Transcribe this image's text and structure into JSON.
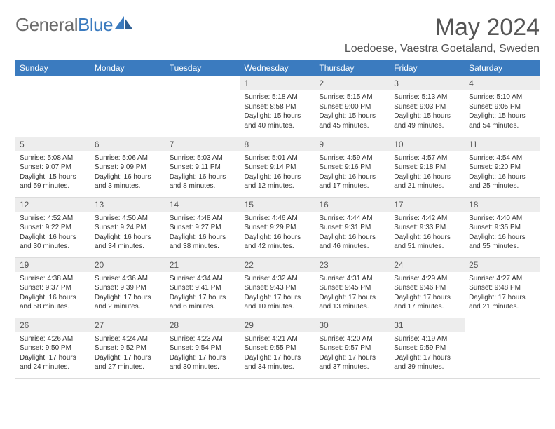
{
  "brand": {
    "part1": "General",
    "part2": "Blue"
  },
  "title": "May 2024",
  "location": "Loedoese, Vaestra Goetaland, Sweden",
  "colors": {
    "headerBar": "#3b7bbf",
    "dayNumBg": "#ededed",
    "text": "#333333",
    "muted": "#555555"
  },
  "weekdays": [
    "Sunday",
    "Monday",
    "Tuesday",
    "Wednesday",
    "Thursday",
    "Friday",
    "Saturday"
  ],
  "startOffset": 3,
  "days": [
    {
      "n": "1",
      "sunrise": "5:18 AM",
      "sunset": "8:58 PM",
      "daylight": "15 hours and 40 minutes."
    },
    {
      "n": "2",
      "sunrise": "5:15 AM",
      "sunset": "9:00 PM",
      "daylight": "15 hours and 45 minutes."
    },
    {
      "n": "3",
      "sunrise": "5:13 AM",
      "sunset": "9:03 PM",
      "daylight": "15 hours and 49 minutes."
    },
    {
      "n": "4",
      "sunrise": "5:10 AM",
      "sunset": "9:05 PM",
      "daylight": "15 hours and 54 minutes."
    },
    {
      "n": "5",
      "sunrise": "5:08 AM",
      "sunset": "9:07 PM",
      "daylight": "15 hours and 59 minutes."
    },
    {
      "n": "6",
      "sunrise": "5:06 AM",
      "sunset": "9:09 PM",
      "daylight": "16 hours and 3 minutes."
    },
    {
      "n": "7",
      "sunrise": "5:03 AM",
      "sunset": "9:11 PM",
      "daylight": "16 hours and 8 minutes."
    },
    {
      "n": "8",
      "sunrise": "5:01 AM",
      "sunset": "9:14 PM",
      "daylight": "16 hours and 12 minutes."
    },
    {
      "n": "9",
      "sunrise": "4:59 AM",
      "sunset": "9:16 PM",
      "daylight": "16 hours and 17 minutes."
    },
    {
      "n": "10",
      "sunrise": "4:57 AM",
      "sunset": "9:18 PM",
      "daylight": "16 hours and 21 minutes."
    },
    {
      "n": "11",
      "sunrise": "4:54 AM",
      "sunset": "9:20 PM",
      "daylight": "16 hours and 25 minutes."
    },
    {
      "n": "12",
      "sunrise": "4:52 AM",
      "sunset": "9:22 PM",
      "daylight": "16 hours and 30 minutes."
    },
    {
      "n": "13",
      "sunrise": "4:50 AM",
      "sunset": "9:24 PM",
      "daylight": "16 hours and 34 minutes."
    },
    {
      "n": "14",
      "sunrise": "4:48 AM",
      "sunset": "9:27 PM",
      "daylight": "16 hours and 38 minutes."
    },
    {
      "n": "15",
      "sunrise": "4:46 AM",
      "sunset": "9:29 PM",
      "daylight": "16 hours and 42 minutes."
    },
    {
      "n": "16",
      "sunrise": "4:44 AM",
      "sunset": "9:31 PM",
      "daylight": "16 hours and 46 minutes."
    },
    {
      "n": "17",
      "sunrise": "4:42 AM",
      "sunset": "9:33 PM",
      "daylight": "16 hours and 51 minutes."
    },
    {
      "n": "18",
      "sunrise": "4:40 AM",
      "sunset": "9:35 PM",
      "daylight": "16 hours and 55 minutes."
    },
    {
      "n": "19",
      "sunrise": "4:38 AM",
      "sunset": "9:37 PM",
      "daylight": "16 hours and 58 minutes."
    },
    {
      "n": "20",
      "sunrise": "4:36 AM",
      "sunset": "9:39 PM",
      "daylight": "17 hours and 2 minutes."
    },
    {
      "n": "21",
      "sunrise": "4:34 AM",
      "sunset": "9:41 PM",
      "daylight": "17 hours and 6 minutes."
    },
    {
      "n": "22",
      "sunrise": "4:32 AM",
      "sunset": "9:43 PM",
      "daylight": "17 hours and 10 minutes."
    },
    {
      "n": "23",
      "sunrise": "4:31 AM",
      "sunset": "9:45 PM",
      "daylight": "17 hours and 13 minutes."
    },
    {
      "n": "24",
      "sunrise": "4:29 AM",
      "sunset": "9:46 PM",
      "daylight": "17 hours and 17 minutes."
    },
    {
      "n": "25",
      "sunrise": "4:27 AM",
      "sunset": "9:48 PM",
      "daylight": "17 hours and 21 minutes."
    },
    {
      "n": "26",
      "sunrise": "4:26 AM",
      "sunset": "9:50 PM",
      "daylight": "17 hours and 24 minutes."
    },
    {
      "n": "27",
      "sunrise": "4:24 AM",
      "sunset": "9:52 PM",
      "daylight": "17 hours and 27 minutes."
    },
    {
      "n": "28",
      "sunrise": "4:23 AM",
      "sunset": "9:54 PM",
      "daylight": "17 hours and 30 minutes."
    },
    {
      "n": "29",
      "sunrise": "4:21 AM",
      "sunset": "9:55 PM",
      "daylight": "17 hours and 34 minutes."
    },
    {
      "n": "30",
      "sunrise": "4:20 AM",
      "sunset": "9:57 PM",
      "daylight": "17 hours and 37 minutes."
    },
    {
      "n": "31",
      "sunrise": "4:19 AM",
      "sunset": "9:59 PM",
      "daylight": "17 hours and 39 minutes."
    }
  ]
}
